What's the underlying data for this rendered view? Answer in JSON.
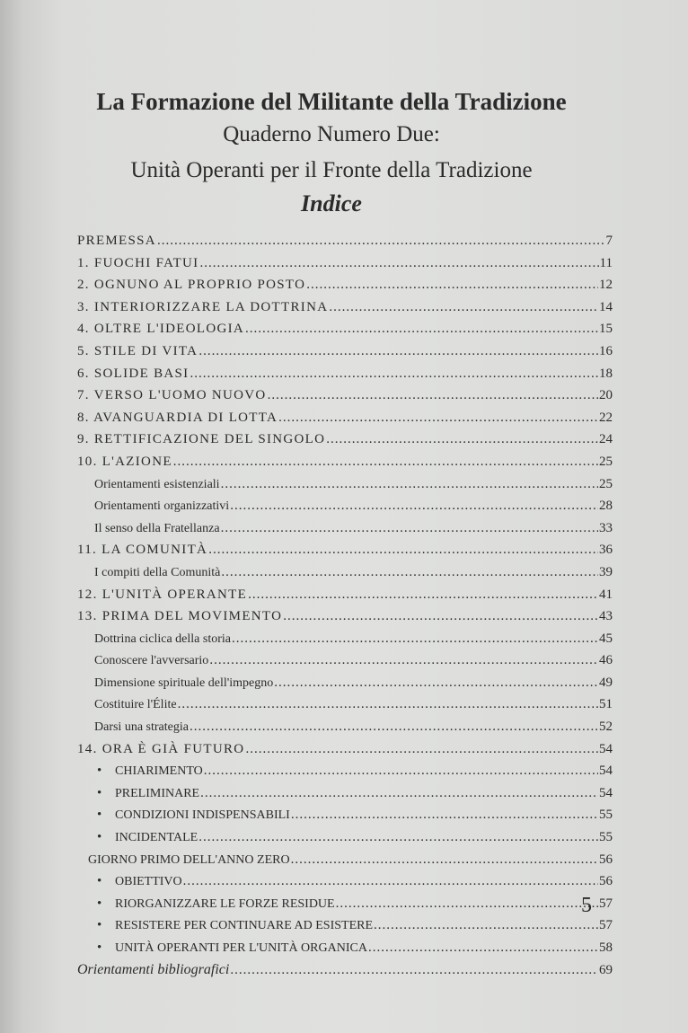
{
  "title": "La Formazione del Militante della Tradizione",
  "subtitle1": "Quaderno Numero Due:",
  "subtitle2": "Unità Operanti per il Fronte della Tradizione",
  "index_heading": "Indice",
  "toc": [
    {
      "label": "PREMESSA",
      "page": "7",
      "level": 0
    },
    {
      "label": "1. FUOCHI FATUI",
      "page": "11",
      "level": 0
    },
    {
      "label": "2. OGNUNO AL PROPRIO POSTO",
      "page": "12",
      "level": 0
    },
    {
      "label": "3. INTERIORIZZARE LA DOTTRINA",
      "page": "14",
      "level": 0
    },
    {
      "label": "4. OLTRE L'IDEOLOGIA",
      "page": "15",
      "level": 0
    },
    {
      "label": "5. STILE DI VITA",
      "page": "16",
      "level": 0
    },
    {
      "label": "6. SOLIDE BASI",
      "page": "18",
      "level": 0
    },
    {
      "label": "7. VERSO L'UOMO NUOVO",
      "page": "20",
      "level": 0
    },
    {
      "label": "8. AVANGUARDIA DI LOTTA",
      "page": "22",
      "level": 0
    },
    {
      "label": "9. RETTIFICAZIONE DEL SINGOLO",
      "page": "24",
      "level": 0
    },
    {
      "label": "10. L'AZIONE",
      "page": "25",
      "level": 0
    },
    {
      "label": "Orientamenti esistenziali",
      "page": "25",
      "level": 1
    },
    {
      "label": "Orientamenti organizzativi",
      "page": "28",
      "level": 1
    },
    {
      "label": "Il senso della Fratellanza",
      "page": "33",
      "level": 1
    },
    {
      "label": "11. LA COMUNITÀ",
      "page": "36",
      "level": 0
    },
    {
      "label": "I compiti della Comunità",
      "page": "39",
      "level": 1
    },
    {
      "label": "12. L'UNITÀ OPERANTE",
      "page": "41",
      "level": 0
    },
    {
      "label": "13. PRIMA DEL MOVIMENTO",
      "page": "43",
      "level": 0
    },
    {
      "label": "Dottrina ciclica della storia",
      "page": "45",
      "level": 1
    },
    {
      "label": "Conoscere l'avversario",
      "page": "46",
      "level": 1
    },
    {
      "label": "Dimensione spirituale dell'impegno",
      "page": "49",
      "level": 1
    },
    {
      "label": "Costituire l'Élite",
      "page": "51",
      "level": 1
    },
    {
      "label": "Darsi una strategia",
      "page": "52",
      "level": 1
    },
    {
      "label": "14. ORA È GIÀ FUTURO",
      "page": "54",
      "level": 0
    },
    {
      "label": "CHIARIMENTO",
      "page": "54",
      "level": 2
    },
    {
      "label": "PRELIMINARE",
      "page": "54",
      "level": 2
    },
    {
      "label": "CONDIZIONI INDISPENSABILI",
      "page": "55",
      "level": 2
    },
    {
      "label": "INCIDENTALE",
      "page": "55",
      "level": 2
    },
    {
      "label": "GIORNO PRIMO DELL'ANNO ZERO",
      "page": "56",
      "level": "g"
    },
    {
      "label": "OBIETTIVO",
      "page": "56",
      "level": 2
    },
    {
      "label": "RIORGANIZZARE LE FORZE RESIDUE",
      "page": "57",
      "level": 2
    },
    {
      "label": "RESISTERE PER CONTINUARE AD ESISTERE",
      "page": "57",
      "level": 2
    },
    {
      "label": "UNITÀ OPERANTI PER L'UNITÀ ORGANICA",
      "page": "58",
      "level": 2
    },
    {
      "label": "Orientamenti bibliografici",
      "page": "69",
      "level": "i"
    }
  ],
  "bullet": "•",
  "page_number": "5"
}
